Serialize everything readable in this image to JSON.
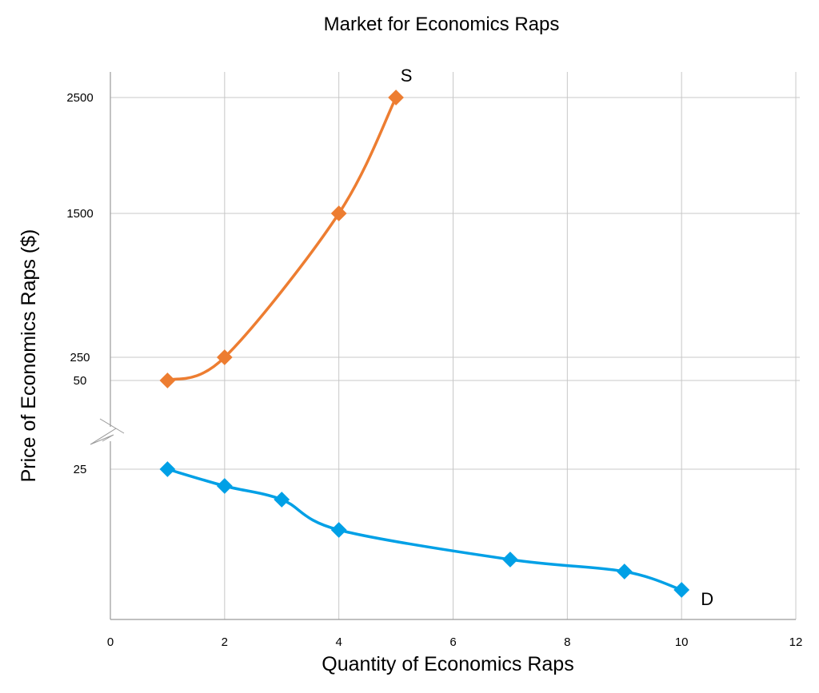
{
  "chart_data": {
    "type": "line",
    "title": "Market for Economics Raps",
    "xlabel": "Quantity of Economics Raps",
    "ylabel": "Price of Economics Raps ($)",
    "xlim": [
      0,
      12
    ],
    "x_ticks": [
      "0",
      "2",
      "4",
      "6",
      "8",
      "10",
      "12"
    ],
    "y_ticks": [
      "2500",
      "1500",
      "250",
      "50",
      "25"
    ],
    "y_axis_break": true,
    "grid": true,
    "series": [
      {
        "name": "S",
        "color": "#ED7D31",
        "points": [
          {
            "x": 1,
            "y": 50
          },
          {
            "x": 2,
            "y": 250
          },
          {
            "x": 4,
            "y": 1500
          },
          {
            "x": 5,
            "y": 2500
          }
        ]
      },
      {
        "name": "D",
        "color": "#00A0E6",
        "points": [
          {
            "x": 1,
            "y": 25
          },
          {
            "x": 2,
            "y": 22
          },
          {
            "x": 3,
            "y": 20
          },
          {
            "x": 4,
            "y": 15
          },
          {
            "x": 7,
            "y": 10
          },
          {
            "x": 9,
            "y": 8
          },
          {
            "x": 10,
            "y": 5
          }
        ]
      }
    ]
  }
}
